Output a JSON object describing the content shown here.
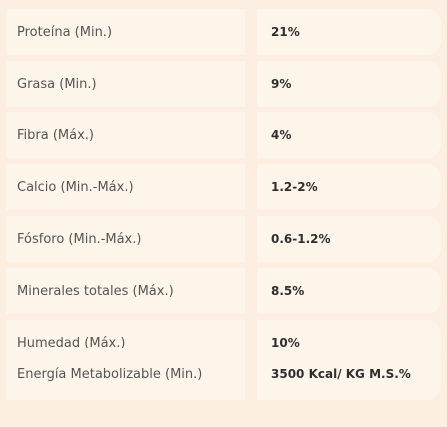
{
  "colors": {
    "background": "#fcefe2",
    "cell": "#fdf4ea",
    "label_text": "#555555",
    "value_text": "#2f2f2f"
  },
  "table": {
    "rows": [
      {
        "label": "Proteína (Min.)",
        "value": "21%"
      },
      {
        "label": "Grasa (Min.)",
        "value": "9%"
      },
      {
        "label": "Fibra (Máx.)",
        "value": "4%"
      },
      {
        "label": "Calcio (Min.-Máx.)",
        "value": "1.2-2%"
      },
      {
        "label": "Fósforo (Min.-Máx.)",
        "value": "0.6-1.2%"
      },
      {
        "label": "Minerales totales (Máx.)",
        "value": "8.5%"
      },
      {
        "label": "Humedad (Máx.)",
        "value": "10%"
      },
      {
        "label": "Energía Metabolizable (Min.)",
        "value": "3500 Kcal/ KG M.S.%"
      }
    ]
  }
}
